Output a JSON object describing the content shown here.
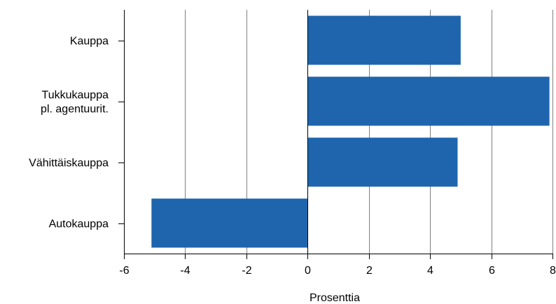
{
  "chart_data": {
    "type": "bar",
    "orientation": "horizontal",
    "categories": [
      [
        "Kauppa"
      ],
      [
        "Tukkukauppa",
        "pl. agentuurit."
      ],
      [
        "Vähittäiskauppa"
      ],
      [
        "Autokauppa"
      ]
    ],
    "values": [
      5.0,
      7.9,
      4.9,
      -5.1
    ],
    "xlim": [
      -6,
      8
    ],
    "xticks": [
      -6,
      -4,
      -2,
      0,
      2,
      4,
      6,
      8
    ],
    "xlabel": "Prosenttia",
    "title": "",
    "grid": "vertical",
    "colors": {
      "bar": "#1f65ad",
      "grid": "#808080",
      "axis": "#000000"
    }
  }
}
